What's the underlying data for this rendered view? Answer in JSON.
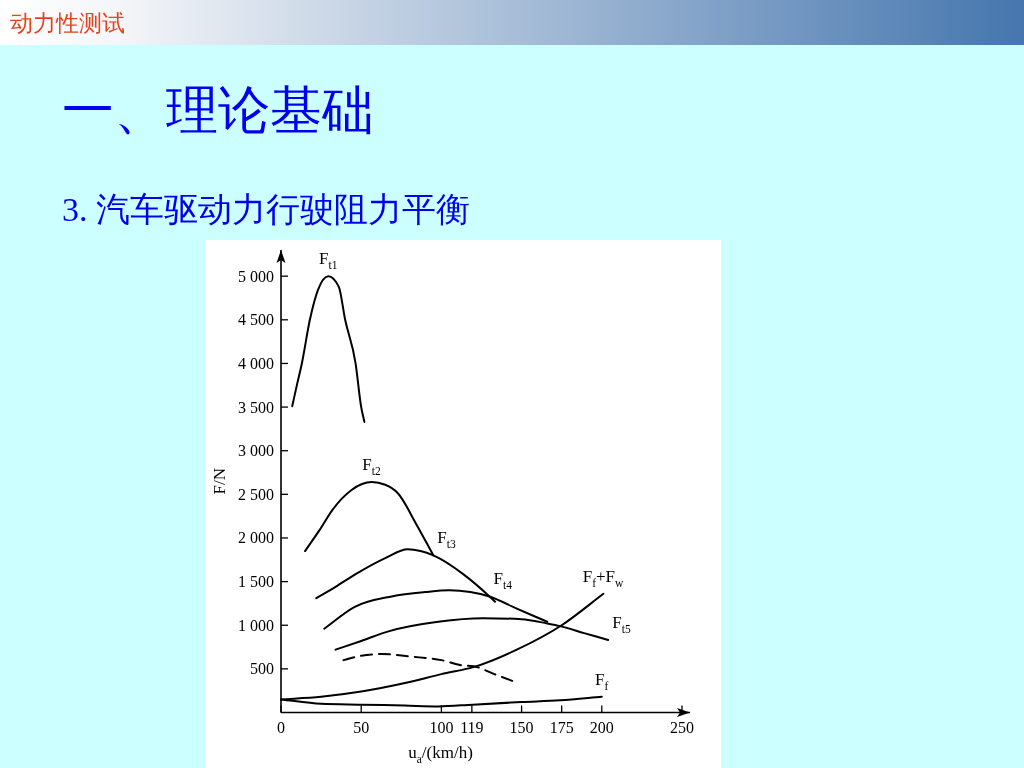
{
  "chart_data": {
    "type": "line",
    "title": "一、理论基础",
    "subtitle": "3. 汽车驱动力行驶阻力平衡",
    "xlabel": "u$_{a}$/(km/h)",
    "ylabel": "F/N",
    "xlim": [
      0,
      255
    ],
    "ylim": [
      0,
      5300
    ],
    "xticks": [
      0,
      50,
      100,
      119,
      150,
      175,
      200,
      250
    ],
    "yticks": [
      500,
      {
        "value": 1000,
        "label": "1 000"
      },
      {
        "value": 1500,
        "label": "1 500"
      },
      {
        "value": 2000,
        "label": "2 000"
      },
      {
        "value": 2500,
        "label": "2 500"
      },
      {
        "value": 3000,
        "label": "3 000"
      },
      {
        "value": 3500,
        "label": "3 500"
      },
      {
        "value": 4000,
        "label": "4 000"
      },
      {
        "value": 4500,
        "label": "4 500"
      },
      {
        "value": 5000,
        "label": "5 000"
      }
    ],
    "grid": false,
    "line_style": "solid",
    "series": [
      {
        "color": "#000000",
        "x": [
          7,
          10,
          13,
          18,
          23,
          29.5,
          36,
          40,
          46.5,
          50,
          52
        ],
        "values": [
          3510,
          3760,
          4000,
          4500,
          4840,
          5000,
          4880,
          4500,
          4000,
          3500,
          3330
        ]
      },
      {
        "color": "#000000",
        "x": [
          15,
          24,
          32,
          44,
          56.5,
          65,
          73,
          84,
          95
        ],
        "values": [
          1850,
          2090,
          2320,
          2550,
          2640,
          2610,
          2510,
          2170,
          1800
        ]
      },
      {
        "color": "#000000",
        "x": [
          22,
          34,
          46,
          65,
          79,
          87,
          95,
          114,
          130,
          133.5
        ],
        "values": [
          1310,
          1440,
          1580,
          1770,
          1870,
          1850,
          1800,
          1580,
          1330,
          1270
        ]
      },
      {
        "color": "#000000",
        "x": [
          27,
          46,
          69,
          90,
          105,
          118,
          130,
          147,
          166
        ],
        "values": [
          960,
          1210,
          1330,
          1380,
          1400,
          1380,
          1330,
          1190,
          1040
        ]
      },
      {
        "color": "#000000",
        "x": [
          34,
          50,
          67,
          98,
          126,
          150,
          166,
          174,
          189,
          204
        ],
        "values": [
          720,
          820,
          930,
          1040,
          1080,
          1070,
          1020,
          990,
          910,
          830
        ]
      },
      {
        "color": "#000000",
        "line_style": "dashed",
        "x": [
          39,
          50,
          63,
          81.5,
          100,
          113,
          120,
          133,
          146
        ],
        "values": [
          600,
          650,
          670,
          640,
          600,
          540,
          530,
          440,
          350
        ]
      },
      {
        "color": "#000000",
        "x": [
          0,
          25,
          50,
          78,
          100,
          120,
          147,
          175,
          201
        ],
        "values": [
          150,
          180,
          240,
          340,
          440,
          520,
          720,
          1000,
          1360
        ]
      },
      {
        "color": "#000000",
        "x": [
          0,
          25,
          50,
          77,
          98,
          119.5,
          150,
          174,
          200
        ],
        "values": [
          150,
          100,
          90,
          80,
          70,
          90,
          120,
          140,
          180
        ]
      }
    ],
    "annotations": [
      "动力性测试",
      {
        "text": "F$_{t1}$",
        "x": 29.5,
        "y": 5000
      },
      {
        "text": "F$_{t2}$",
        "x": 56.5,
        "y": 2640
      },
      {
        "text": "F$_{t3}$",
        "x": 95,
        "y": 1800
      },
      {
        "text": "F$_{t4}$",
        "x": 130,
        "y": 1330
      },
      {
        "text": "F$_{f}$+F$_{w}$",
        "x": 201,
        "y": 1360
      },
      {
        "text": "F$_{t5}$",
        "x": 204,
        "y": 830
      },
      {
        "text": "F$_{f}$",
        "x": 200,
        "y": 180
      }
    ]
  }
}
